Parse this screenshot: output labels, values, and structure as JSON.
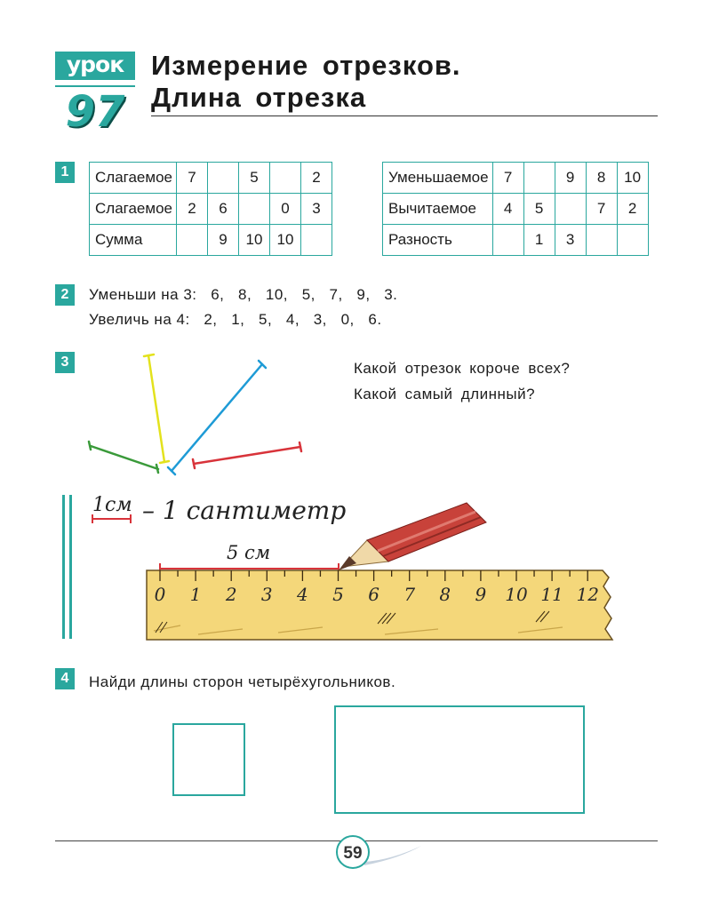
{
  "lesson": {
    "tag": "урок",
    "number": "97"
  },
  "title": {
    "line1": "Измерение отрезков.",
    "line2": "Длина отрезка"
  },
  "task1": {
    "number": "1",
    "table_left": [
      [
        "Слагаемое",
        "7",
        "",
        "5",
        "",
        "2"
      ],
      [
        "Слагаемое",
        "2",
        "6",
        "",
        "0",
        "3"
      ],
      [
        "Сумма",
        "",
        "9",
        "10",
        "10",
        ""
      ]
    ],
    "table_right": [
      [
        "Уменьшаемое",
        "7",
        "",
        "9",
        "8",
        "10"
      ],
      [
        "Вычитаемое",
        "4",
        "5",
        "",
        "7",
        "2"
      ],
      [
        "Разность",
        "",
        "1",
        "3",
        "",
        ""
      ]
    ]
  },
  "task2": {
    "number": "2",
    "line1": "Уменьши на 3:   6,   8,   10,   5,   7,   9,   3.",
    "line2": "Увеличь на 4:   2,   1,   5,   4,   3,   0,   6."
  },
  "task3": {
    "number": "3",
    "q1": "Какой отрезок короче всех?",
    "q2": "Какой самый длинный?",
    "colors": {
      "yellow": "#e3e21d",
      "blue": "#1e9bd6",
      "green": "#3a9a3a",
      "red": "#d8333a"
    }
  },
  "ruler_section": {
    "cm_abbr": "1см",
    "cm_full": "– 1 сантиметр",
    "five_cm": "5 см",
    "ticks": [
      "0",
      "1",
      "2",
      "3",
      "4",
      "5",
      "6",
      "7",
      "8",
      "9",
      "10",
      "11",
      "12"
    ]
  },
  "task4": {
    "number": "4",
    "text": "Найди длины сторон четырёхугольников."
  },
  "page_number": "59",
  "accent_color": "#2aa79e"
}
